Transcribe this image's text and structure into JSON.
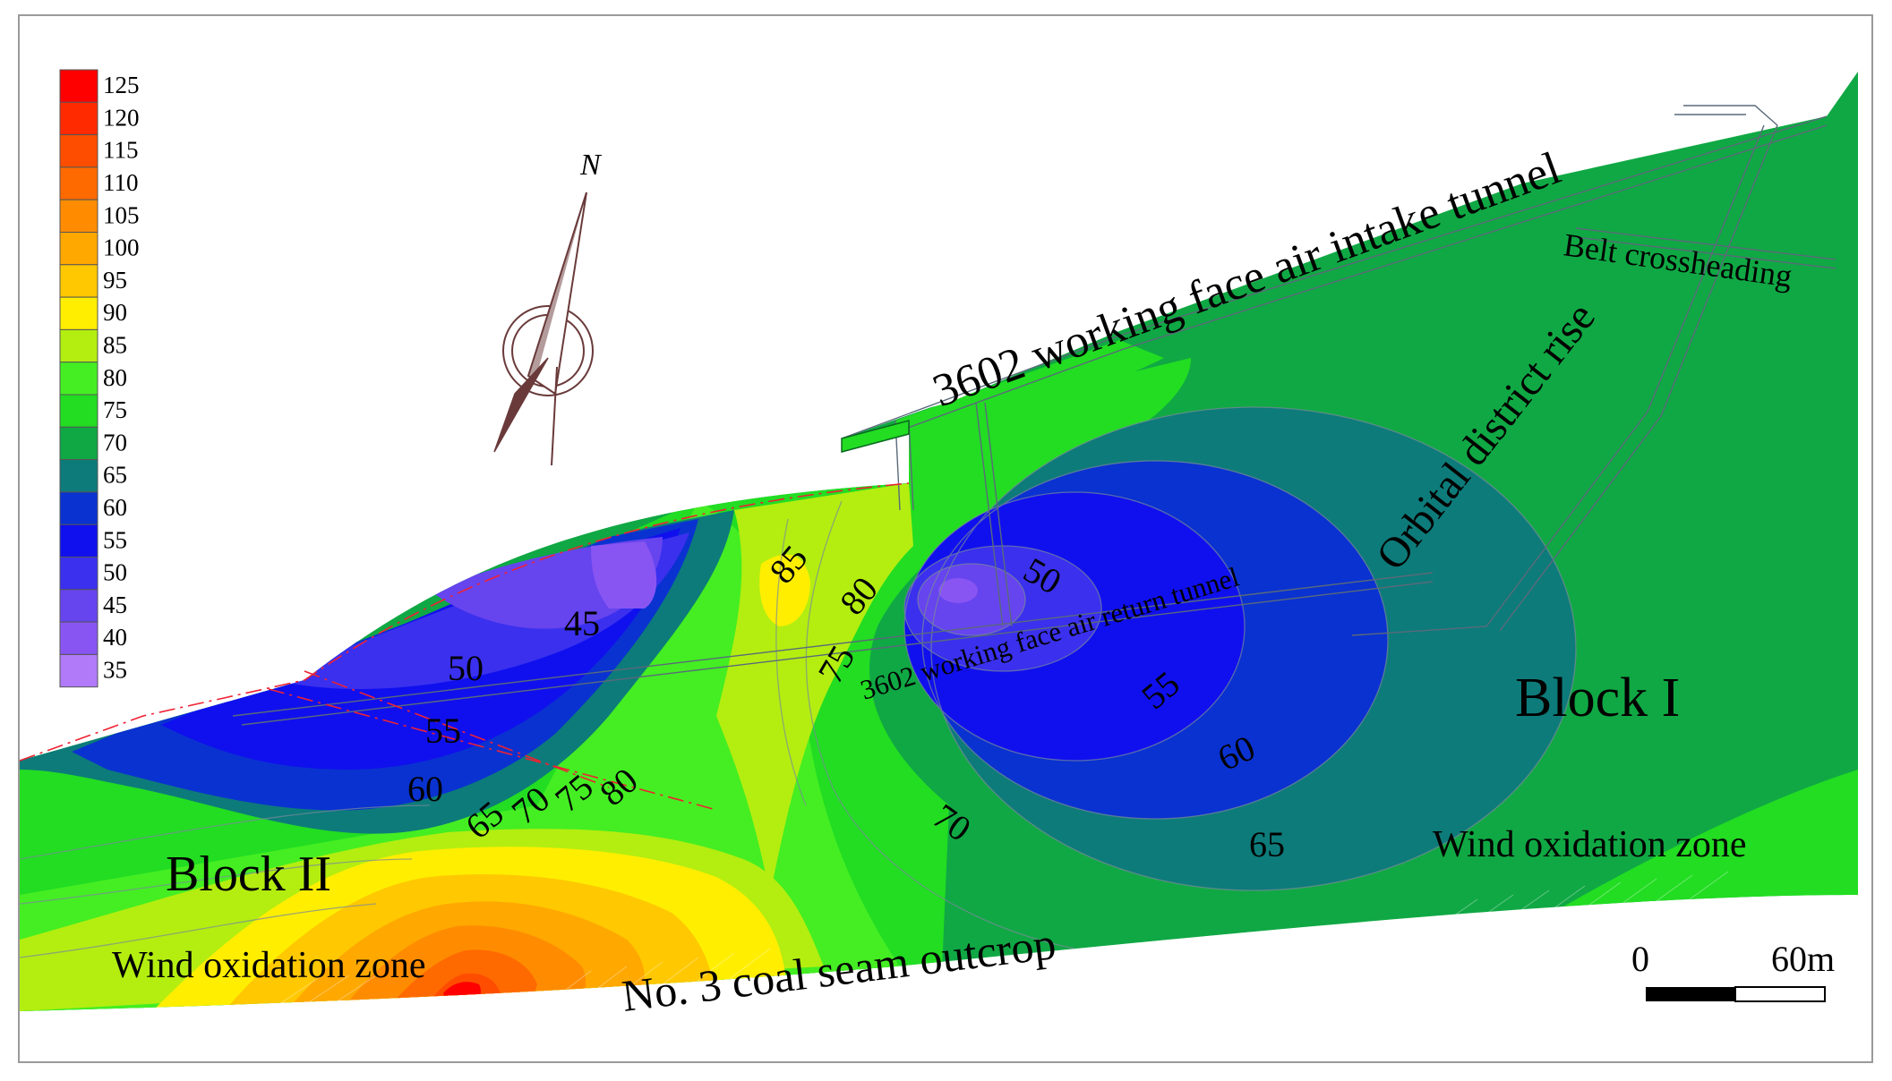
{
  "legend": {
    "values": [
      "125",
      "120",
      "115",
      "110",
      "105",
      "100",
      "95",
      "90",
      "85",
      "80",
      "75",
      "70",
      "65",
      "60",
      "55",
      "50",
      "45",
      "40",
      "35"
    ],
    "colors": [
      "#ff0000",
      "#ff2a00",
      "#ff4d00",
      "#ff6a00",
      "#ff8c00",
      "#ffa800",
      "#ffc800",
      "#ffee00",
      "#b3ee10",
      "#44ee22",
      "#22dd22",
      "#10a844",
      "#0d7b7a",
      "#0a32d0",
      "#1010ee",
      "#3a30ee",
      "#6644ee",
      "#8855f2",
      "#b07af8"
    ]
  },
  "compass": {
    "north_label": "N"
  },
  "labels": {
    "intake_tunnel": "3602 working face air intake tunnel",
    "belt": "Belt crossheading",
    "orbital": "Orbital district rise",
    "return_tunnel": "3602 working face air return tunnel",
    "block1": "Block I",
    "block2": "Block II",
    "wind_zone_right": "Wind oxidation zone",
    "wind_zone_left": "Wind oxidation zone",
    "outcrop": "No. 3 coal seam outcrop"
  },
  "contour_labels": {
    "c45": "45",
    "c50a": "50",
    "c55a": "55",
    "c60a": "60",
    "c65a": "65",
    "c70a": "70",
    "c75a": "75",
    "c80a": "80",
    "c85": "85",
    "c80b": "80",
    "c75b": "75",
    "c50b": "50",
    "c55b": "55",
    "c60b": "60",
    "c70b": "70",
    "c65b": "65"
  },
  "scale_bar": {
    "start": "0",
    "end": "60m"
  }
}
